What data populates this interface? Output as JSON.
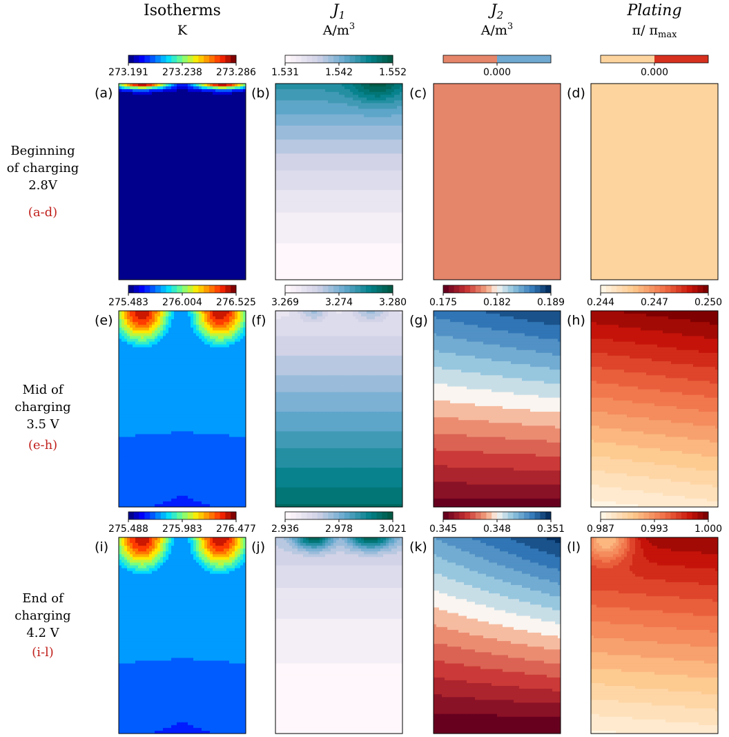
{
  "columns": [
    {
      "title": "Isotherms",
      "unit": "K",
      "italic": false
    },
    {
      "title": "J",
      "title_sub": "1",
      "unit": "A/m",
      "unit_sup": "3",
      "italic": true
    },
    {
      "title": "J",
      "title_sub": "2",
      "unit": "A/m",
      "unit_sup": "3",
      "italic": true
    },
    {
      "title": "Plating",
      "unit": "π/ π",
      "unit_sub": "max",
      "italic": true
    }
  ],
  "rows": [
    {
      "lines": [
        "Beginning",
        "of charging",
        "2.8V"
      ],
      "range": "(a-d)"
    },
    {
      "lines": [
        "Mid of",
        "charging",
        "3.5 V"
      ],
      "range": "(e-h)"
    },
    {
      "lines": [
        "End of",
        "charging",
        "4.2 V"
      ],
      "range": "(i-l)"
    }
  ],
  "panel_labels": [
    "(a)",
    "(b)",
    "(c)",
    "(d)",
    "(e)",
    "(f)",
    "(g)",
    "(h)",
    "(i)",
    "(j)",
    "(k)",
    "(l)"
  ],
  "colors": {
    "row_range_label": "#c0201c"
  },
  "chart_data": {
    "type": "heatmap",
    "colormaps": [
      "jet",
      "PuBuGn",
      "RdBu",
      "OrRd"
    ],
    "panels": [
      {
        "id": "a",
        "quantity": "Isotherms",
        "unit": "K",
        "ticks": [
          "273.191",
          "273.238",
          "273.286"
        ],
        "range": [
          273.191,
          273.286
        ]
      },
      {
        "id": "b",
        "quantity": "J1",
        "unit": "A/m3",
        "ticks": [
          "1.531",
          "1.542",
          "1.552"
        ],
        "range": [
          1.531,
          1.552
        ]
      },
      {
        "id": "c",
        "quantity": "J2",
        "unit": "A/m3",
        "ticks": [
          "0.000"
        ],
        "range": [
          0,
          0
        ]
      },
      {
        "id": "d",
        "quantity": "Plating",
        "unit": "π/πmax",
        "ticks": [
          "0.000"
        ],
        "range": [
          0,
          0
        ]
      },
      {
        "id": "e",
        "quantity": "Isotherms",
        "unit": "K",
        "ticks": [
          "275.483",
          "276.004",
          "276.525"
        ],
        "range": [
          275.483,
          276.525
        ]
      },
      {
        "id": "f",
        "quantity": "J1",
        "unit": "A/m3",
        "ticks": [
          "3.269",
          "3.274",
          "3.280"
        ],
        "range": [
          3.269,
          3.28
        ]
      },
      {
        "id": "g",
        "quantity": "J2",
        "unit": "A/m3",
        "ticks": [
          "0.175",
          "0.182",
          "0.189"
        ],
        "range": [
          0.175,
          0.189
        ]
      },
      {
        "id": "h",
        "quantity": "Plating",
        "unit": "π/πmax",
        "ticks": [
          "0.244",
          "0.247",
          "0.250"
        ],
        "range": [
          0.244,
          0.25
        ]
      },
      {
        "id": "i",
        "quantity": "Isotherms",
        "unit": "K",
        "ticks": [
          "275.488",
          "275.983",
          "276.477"
        ],
        "range": [
          275.488,
          276.477
        ]
      },
      {
        "id": "j",
        "quantity": "J1",
        "unit": "A/m3",
        "ticks": [
          "2.936",
          "2.978",
          "3.021"
        ],
        "range": [
          2.936,
          3.021
        ]
      },
      {
        "id": "k",
        "quantity": "J2",
        "unit": "A/m3",
        "ticks": [
          "0.345",
          "0.348",
          "0.351"
        ],
        "range": [
          0.345,
          0.351
        ]
      },
      {
        "id": "l",
        "quantity": "Plating",
        "unit": "π/πmax",
        "ticks": [
          "0.987",
          "0.993",
          "1.000"
        ],
        "range": [
          0.987,
          1.0
        ]
      }
    ]
  }
}
